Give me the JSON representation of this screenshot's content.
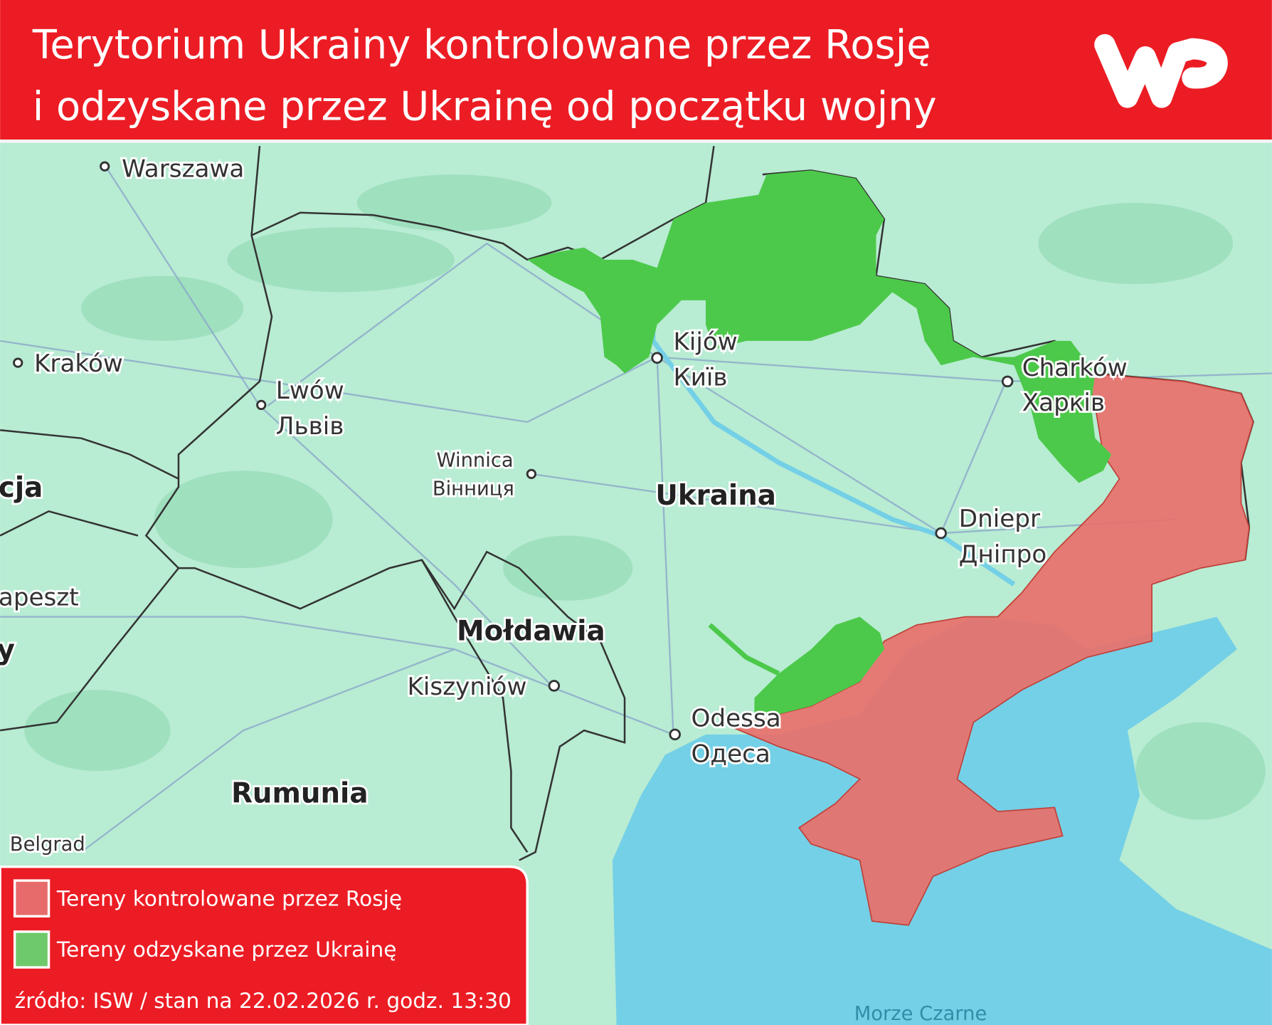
{
  "header": {
    "title_line1": "Terytorium Ukrainy kontrolowane przez Rosję",
    "title_line2": "i odzyskane przez Ukrainę od początku wojny",
    "logo": "WP"
  },
  "colors": {
    "brand_red": "#ec1c24",
    "russian_controlled": "#e8706b",
    "ukraine_regained": "#4cc94a",
    "land": "#b8ecd3",
    "sea": "#74d0e6"
  },
  "map": {
    "cities": [
      {
        "name": "Warszawa"
      },
      {
        "name": "Kraków"
      },
      {
        "name": "Lwów",
        "local": "Львів"
      },
      {
        "name": "Winnica",
        "local": "Вінниця"
      },
      {
        "name": "Kijów",
        "local": "Київ"
      },
      {
        "name": "Charków",
        "local": "Харків"
      },
      {
        "name": "Dniepr",
        "local": "Дніпро"
      },
      {
        "name": "Kiszyniów"
      },
      {
        "name": "Odessa",
        "local": "Одеса"
      },
      {
        "name": "Belgrad"
      }
    ],
    "countries": [
      "Ukraina",
      "Mołdawia",
      "Rumunia",
      "cja",
      "apeszt",
      "y"
    ],
    "sea_label": "Morze Czarne"
  },
  "legend": {
    "items": [
      {
        "label": "Tereny kontrolowane przez Rosję",
        "color": "#e8706b"
      },
      {
        "label": "Tereny odzyskane przez Ukrainę",
        "color": "#6ec96a"
      }
    ],
    "source": "źródło: ISW / stan na 22.02.2026 r. godz. 13:30"
  }
}
